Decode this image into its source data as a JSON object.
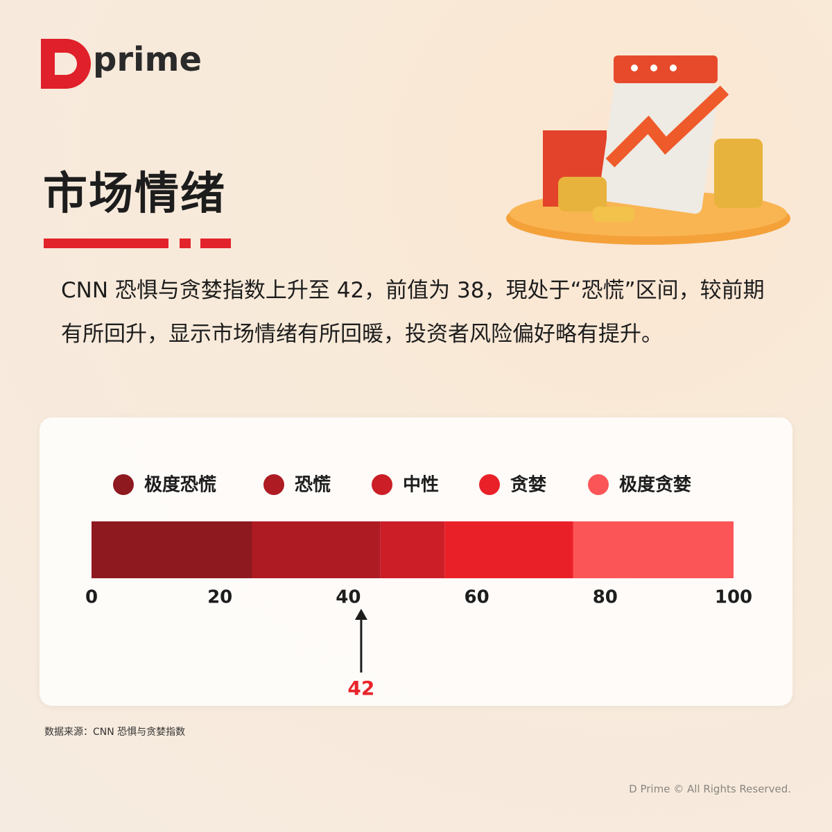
{
  "logo": {
    "text": "prime"
  },
  "header": {
    "title": "市场情绪"
  },
  "body": {
    "paragraph": "CNN 恐惧与贪婪指数上升至 42，前值为 38，現处于“恐慌”区间，较前期有所回升，显示市场情绪有所回暖，投资者风险偏好略有提升。"
  },
  "chart_data": {
    "type": "stacked-bar",
    "series": [
      {
        "name": "极度恐慌",
        "color": "#8e191f",
        "values": [
          25
        ]
      },
      {
        "name": "恐慌",
        "color": "#ae1b23",
        "values": [
          20
        ]
      },
      {
        "name": "中性",
        "color": "#cb1e27",
        "values": [
          10
        ]
      },
      {
        "name": "贪婪",
        "color": "#ea2029",
        "values": [
          20
        ]
      },
      {
        "name": "极度贪婪",
        "color": "#fb5557",
        "values": [
          25
        ]
      }
    ],
    "xlim": [
      0,
      100
    ],
    "xticks": [
      0,
      20,
      40,
      60,
      80,
      100
    ],
    "marker": 42,
    "marker_color": "#e8232b"
  },
  "source": "数据来源：CNN 恐惧与贪婪指数",
  "footer": "D Prime © All Rights Reserved."
}
